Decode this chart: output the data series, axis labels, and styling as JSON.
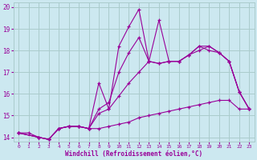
{
  "xlabel": "Windchill (Refroidissement éolien,°C)",
  "bg_color": "#cce8f0",
  "grid_color": "#aacccc",
  "line_color": "#990099",
  "xlim": [
    -0.5,
    23.5
  ],
  "ylim": [
    13.8,
    20.2
  ],
  "yticks": [
    14,
    15,
    16,
    17,
    18,
    19,
    20
  ],
  "xticks": [
    0,
    1,
    2,
    3,
    4,
    5,
    6,
    7,
    8,
    9,
    10,
    11,
    12,
    13,
    14,
    15,
    16,
    17,
    18,
    19,
    20,
    21,
    22,
    23
  ],
  "series1_x": [
    0,
    1,
    2,
    3,
    4,
    5,
    6,
    7,
    8,
    9,
    10,
    11,
    12,
    13,
    14,
    15,
    16,
    17,
    18,
    19,
    20,
    21,
    22,
    23
  ],
  "series1_y": [
    14.2,
    14.2,
    14.0,
    13.9,
    14.4,
    14.5,
    14.5,
    14.4,
    14.4,
    14.5,
    14.6,
    14.7,
    14.9,
    15.0,
    15.1,
    15.2,
    15.3,
    15.4,
    15.5,
    15.6,
    15.7,
    15.7,
    15.3,
    15.3
  ],
  "series2_x": [
    0,
    2,
    3,
    4,
    5,
    6,
    7,
    8,
    9,
    10,
    11,
    12,
    13,
    14,
    15,
    16,
    17,
    18,
    19,
    20,
    21,
    22,
    23
  ],
  "series2_y": [
    14.2,
    14.0,
    13.9,
    14.4,
    14.5,
    14.5,
    14.4,
    15.1,
    15.3,
    15.9,
    16.5,
    17.0,
    17.5,
    17.4,
    17.5,
    17.5,
    17.8,
    18.0,
    18.2,
    17.9,
    17.5,
    16.1,
    15.3
  ],
  "series3_x": [
    0,
    2,
    3,
    4,
    5,
    6,
    7,
    8,
    9,
    10,
    11,
    12,
    13,
    14,
    15,
    16,
    17,
    18,
    19,
    20,
    21,
    22,
    23
  ],
  "series3_y": [
    14.2,
    14.0,
    13.9,
    14.4,
    14.5,
    14.5,
    14.4,
    15.3,
    15.6,
    17.0,
    17.9,
    18.6,
    17.5,
    17.4,
    17.5,
    17.5,
    17.8,
    18.2,
    18.2,
    17.9,
    17.5,
    16.1,
    15.3
  ],
  "series4_x": [
    0,
    2,
    3,
    4,
    5,
    6,
    7,
    8,
    9,
    10,
    11,
    12,
    13,
    14,
    15,
    16,
    17,
    18,
    19,
    20,
    21,
    22,
    23
  ],
  "series4_y": [
    14.2,
    14.0,
    13.9,
    14.4,
    14.5,
    14.5,
    14.4,
    16.5,
    15.3,
    18.2,
    19.1,
    19.9,
    17.5,
    19.4,
    17.5,
    17.5,
    17.8,
    18.2,
    18.0,
    17.9,
    17.5,
    16.1,
    15.3
  ]
}
